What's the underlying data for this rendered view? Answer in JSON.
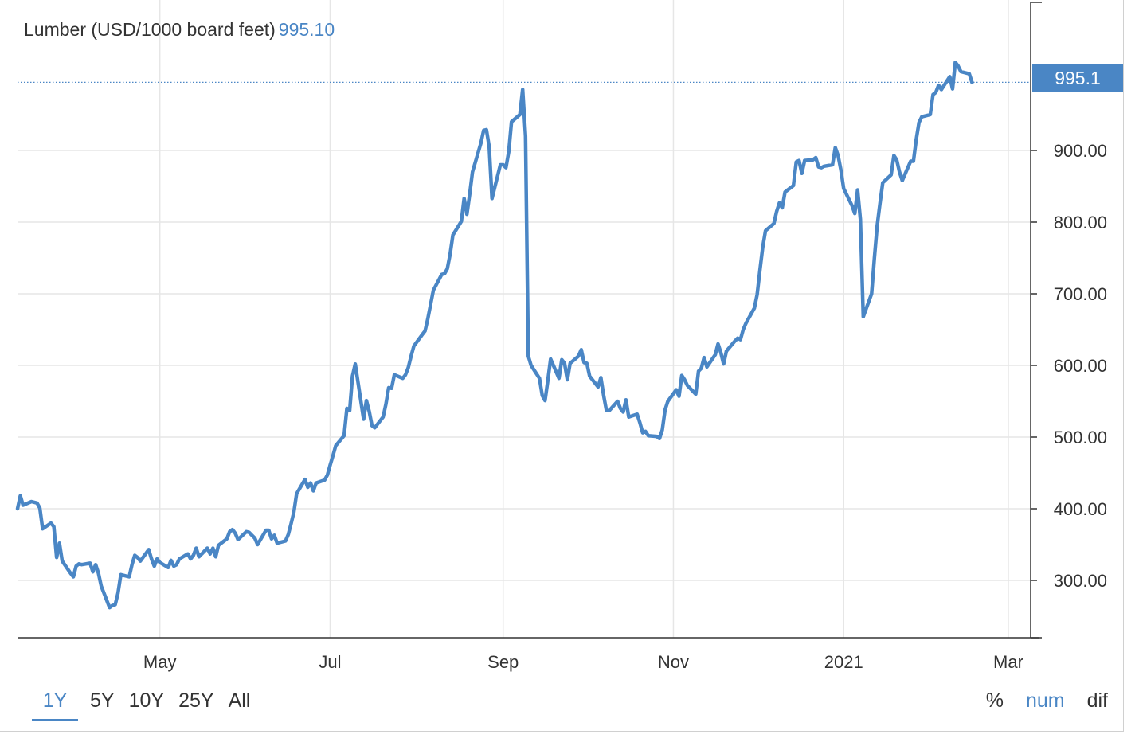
{
  "header": {
    "title": "Lumber (USD/1000 board feet)",
    "last_value": "995.10"
  },
  "price_label": "995.1",
  "range_buttons": [
    {
      "label": "1Y",
      "active": true
    },
    {
      "label": "5Y",
      "active": false
    },
    {
      "label": "10Y",
      "active": false
    },
    {
      "label": "25Y",
      "active": false
    },
    {
      "label": "All",
      "active": false
    }
  ],
  "mode_buttons": [
    {
      "label": "%",
      "active": false
    },
    {
      "label": "num",
      "active": true
    },
    {
      "label": "dif",
      "active": false
    }
  ],
  "colors": {
    "line": "#4a86c5",
    "grid": "#e6e6e6",
    "axis": "#333333",
    "text": "#333333",
    "accent": "#4a86c5",
    "price_tag_bg": "#4a86c5"
  },
  "chart_data": {
    "type": "line",
    "title": "Lumber (USD/1000 board feet)",
    "xlabel": "",
    "ylabel": "",
    "ylim": [
      220,
      1110
    ],
    "xlim": [
      "2020-03-11",
      "2021-03-09"
    ],
    "yticks": [
      300,
      400,
      500,
      600,
      700,
      800,
      900
    ],
    "ytick_labels": [
      "300.00",
      "400.00",
      "500.00",
      "600.00",
      "700.00",
      "800.00",
      "900.00"
    ],
    "xticks": [
      "2020-05-01",
      "2020-07-01",
      "2020-09-01",
      "2020-11-01",
      "2021-01-01",
      "2021-03-01"
    ],
    "xtick_labels": [
      "May",
      "Jul",
      "Sep",
      "Nov",
      "2021",
      "Mar"
    ],
    "grid": true,
    "last_value": 995.1,
    "series": [
      {
        "values": [
          [
            "2020-03-11",
            400
          ],
          [
            "2020-03-12",
            418
          ],
          [
            "2020-03-13",
            405
          ],
          [
            "2020-03-16",
            410
          ],
          [
            "2020-03-18",
            408
          ],
          [
            "2020-03-19",
            401
          ],
          [
            "2020-03-20",
            372
          ],
          [
            "2020-03-23",
            380
          ],
          [
            "2020-03-24",
            375
          ],
          [
            "2020-03-25",
            332
          ],
          [
            "2020-03-26",
            352
          ],
          [
            "2020-03-27",
            327
          ],
          [
            "2020-03-30",
            310
          ],
          [
            "2020-03-31",
            305
          ],
          [
            "2020-04-01",
            320
          ],
          [
            "2020-04-02",
            323
          ],
          [
            "2020-04-03",
            322
          ],
          [
            "2020-04-06",
            324
          ],
          [
            "2020-04-07",
            312
          ],
          [
            "2020-04-08",
            322
          ],
          [
            "2020-04-09",
            310
          ],
          [
            "2020-04-10",
            292
          ],
          [
            "2020-04-13",
            262
          ],
          [
            "2020-04-14",
            265
          ],
          [
            "2020-04-15",
            266
          ],
          [
            "2020-04-16",
            282
          ],
          [
            "2020-04-17",
            308
          ],
          [
            "2020-04-20",
            305
          ],
          [
            "2020-04-21",
            322
          ],
          [
            "2020-04-22",
            335
          ],
          [
            "2020-04-23",
            332
          ],
          [
            "2020-04-24",
            327
          ],
          [
            "2020-04-27",
            343
          ],
          [
            "2020-04-28",
            330
          ],
          [
            "2020-04-29",
            320
          ],
          [
            "2020-04-30",
            330
          ],
          [
            "2020-05-01",
            325
          ],
          [
            "2020-05-04",
            318
          ],
          [
            "2020-05-05",
            328
          ],
          [
            "2020-05-06",
            320
          ],
          [
            "2020-05-07",
            322
          ],
          [
            "2020-05-08",
            330
          ],
          [
            "2020-05-11",
            337
          ],
          [
            "2020-05-12",
            330
          ],
          [
            "2020-05-13",
            335
          ],
          [
            "2020-05-14",
            345
          ],
          [
            "2020-05-15",
            333
          ],
          [
            "2020-05-18",
            345
          ],
          [
            "2020-05-19",
            337
          ],
          [
            "2020-05-20",
            345
          ],
          [
            "2020-05-21",
            333
          ],
          [
            "2020-05-22",
            349
          ],
          [
            "2020-05-25",
            358
          ],
          [
            "2020-05-26",
            368
          ],
          [
            "2020-05-27",
            371
          ],
          [
            "2020-05-28",
            366
          ],
          [
            "2020-05-29",
            357
          ],
          [
            "2020-06-01",
            368
          ],
          [
            "2020-06-02",
            367
          ],
          [
            "2020-06-03",
            363
          ],
          [
            "2020-06-04",
            359
          ],
          [
            "2020-06-05",
            350
          ],
          [
            "2020-06-08",
            370
          ],
          [
            "2020-06-09",
            370
          ],
          [
            "2020-06-10",
            358
          ],
          [
            "2020-06-11",
            363
          ],
          [
            "2020-06-12",
            352
          ],
          [
            "2020-06-15",
            355
          ],
          [
            "2020-06-16",
            364
          ],
          [
            "2020-06-17",
            379
          ],
          [
            "2020-06-18",
            395
          ],
          [
            "2020-06-19",
            421
          ],
          [
            "2020-06-22",
            441
          ],
          [
            "2020-06-23",
            430
          ],
          [
            "2020-06-24",
            436
          ],
          [
            "2020-06-25",
            425
          ],
          [
            "2020-06-26",
            436
          ],
          [
            "2020-06-29",
            440
          ],
          [
            "2020-06-30",
            447
          ],
          [
            "2020-07-01",
            461
          ],
          [
            "2020-07-02",
            474
          ],
          [
            "2020-07-03",
            488
          ],
          [
            "2020-07-06",
            502
          ],
          [
            "2020-07-07",
            540
          ],
          [
            "2020-07-08",
            537
          ],
          [
            "2020-07-09",
            585
          ],
          [
            "2020-07-10",
            602
          ],
          [
            "2020-07-13",
            525
          ],
          [
            "2020-07-14",
            551
          ],
          [
            "2020-07-15",
            536
          ],
          [
            "2020-07-16",
            516
          ],
          [
            "2020-07-17",
            513
          ],
          [
            "2020-07-20",
            528
          ],
          [
            "2020-07-21",
            546
          ],
          [
            "2020-07-22",
            569
          ],
          [
            "2020-07-23",
            568
          ],
          [
            "2020-07-24",
            587
          ],
          [
            "2020-07-27",
            582
          ],
          [
            "2020-07-28",
            587
          ],
          [
            "2020-07-29",
            597
          ],
          [
            "2020-07-30",
            613
          ],
          [
            "2020-07-31",
            627
          ],
          [
            "2020-08-03",
            643
          ],
          [
            "2020-08-04",
            648
          ],
          [
            "2020-08-05",
            665
          ],
          [
            "2020-08-06",
            685
          ],
          [
            "2020-08-07",
            705
          ],
          [
            "2020-08-10",
            727
          ],
          [
            "2020-08-11",
            728
          ],
          [
            "2020-08-12",
            735
          ],
          [
            "2020-08-13",
            755
          ],
          [
            "2020-08-14",
            782
          ],
          [
            "2020-08-17",
            801
          ],
          [
            "2020-08-18",
            833
          ],
          [
            "2020-08-19",
            811
          ],
          [
            "2020-08-20",
            839
          ],
          [
            "2020-08-21",
            870
          ],
          [
            "2020-08-24",
            910
          ],
          [
            "2020-08-25",
            928
          ],
          [
            "2020-08-26",
            929
          ],
          [
            "2020-08-27",
            905
          ],
          [
            "2020-08-28",
            833
          ],
          [
            "2020-08-31",
            880
          ],
          [
            "2020-09-01",
            880
          ],
          [
            "2020-09-02",
            876
          ],
          [
            "2020-09-03",
            898
          ],
          [
            "2020-09-04",
            940
          ],
          [
            "2020-09-07",
            950
          ],
          [
            "2020-09-08",
            985
          ],
          [
            "2020-09-09",
            920
          ],
          [
            "2020-09-10",
            613
          ],
          [
            "2020-09-11",
            600
          ],
          [
            "2020-09-14",
            582
          ],
          [
            "2020-09-15",
            558
          ],
          [
            "2020-09-16",
            551
          ],
          [
            "2020-09-17",
            579
          ],
          [
            "2020-09-18",
            609
          ],
          [
            "2020-09-21",
            582
          ],
          [
            "2020-09-22",
            608
          ],
          [
            "2020-09-23",
            603
          ],
          [
            "2020-09-24",
            580
          ],
          [
            "2020-09-25",
            603
          ],
          [
            "2020-09-28",
            613
          ],
          [
            "2020-09-29",
            622
          ],
          [
            "2020-09-30",
            604
          ],
          [
            "2020-10-01",
            603
          ],
          [
            "2020-10-02",
            585
          ],
          [
            "2020-10-05",
            570
          ],
          [
            "2020-10-06",
            583
          ],
          [
            "2020-10-07",
            558
          ],
          [
            "2020-10-08",
            537
          ],
          [
            "2020-10-09",
            537
          ],
          [
            "2020-10-12",
            550
          ],
          [
            "2020-10-13",
            540
          ],
          [
            "2020-10-14",
            535
          ],
          [
            "2020-10-15",
            552
          ],
          [
            "2020-10-16",
            528
          ],
          [
            "2020-10-19",
            532
          ],
          [
            "2020-10-20",
            520
          ],
          [
            "2020-10-21",
            506
          ],
          [
            "2020-10-22",
            508
          ],
          [
            "2020-10-23",
            502
          ],
          [
            "2020-10-26",
            501
          ],
          [
            "2020-10-27",
            498
          ],
          [
            "2020-10-28",
            510
          ],
          [
            "2020-10-29",
            538
          ],
          [
            "2020-10-30",
            550
          ],
          [
            "2020-11-02",
            566
          ],
          [
            "2020-11-03",
            557
          ],
          [
            "2020-11-04",
            586
          ],
          [
            "2020-11-05",
            580
          ],
          [
            "2020-11-06",
            572
          ],
          [
            "2020-11-09",
            560
          ],
          [
            "2020-11-10",
            592
          ],
          [
            "2020-11-11",
            596
          ],
          [
            "2020-11-12",
            611
          ],
          [
            "2020-11-13",
            598
          ],
          [
            "2020-11-16",
            615
          ],
          [
            "2020-11-17",
            630
          ],
          [
            "2020-11-18",
            618
          ],
          [
            "2020-11-19",
            602
          ],
          [
            "2020-11-20",
            620
          ],
          [
            "2020-11-23",
            634
          ],
          [
            "2020-11-24",
            638
          ],
          [
            "2020-11-25",
            636
          ],
          [
            "2020-11-26",
            650
          ],
          [
            "2020-11-27",
            659
          ],
          [
            "2020-11-30",
            680
          ],
          [
            "2020-12-01",
            699
          ],
          [
            "2020-12-02",
            733
          ],
          [
            "2020-12-03",
            765
          ],
          [
            "2020-12-04",
            788
          ],
          [
            "2020-12-07",
            798
          ],
          [
            "2020-12-08",
            815
          ],
          [
            "2020-12-09",
            827
          ],
          [
            "2020-12-10",
            820
          ],
          [
            "2020-12-11",
            842
          ],
          [
            "2020-12-14",
            851
          ],
          [
            "2020-12-15",
            884
          ],
          [
            "2020-12-16",
            886
          ],
          [
            "2020-12-17",
            868
          ],
          [
            "2020-12-18",
            886
          ],
          [
            "2020-12-21",
            887
          ],
          [
            "2020-12-22",
            890
          ],
          [
            "2020-12-23",
            877
          ],
          [
            "2020-12-24",
            876
          ],
          [
            "2020-12-25",
            878
          ],
          [
            "2020-12-28",
            880
          ],
          [
            "2020-12-29",
            904
          ],
          [
            "2020-12-30",
            893
          ],
          [
            "2020-12-31",
            873
          ],
          [
            "2021-01-01",
            847
          ],
          [
            "2021-01-04",
            823
          ],
          [
            "2021-01-05",
            812
          ],
          [
            "2021-01-06",
            845
          ],
          [
            "2021-01-07",
            804
          ],
          [
            "2021-01-08",
            668
          ],
          [
            "2021-01-11",
            700
          ],
          [
            "2021-01-12",
            750
          ],
          [
            "2021-01-13",
            795
          ],
          [
            "2021-01-14",
            826
          ],
          [
            "2021-01-15",
            855
          ],
          [
            "2021-01-18",
            866
          ],
          [
            "2021-01-19",
            893
          ],
          [
            "2021-01-20",
            887
          ],
          [
            "2021-01-21",
            870
          ],
          [
            "2021-01-22",
            858
          ],
          [
            "2021-01-25",
            885
          ],
          [
            "2021-01-26",
            885
          ],
          [
            "2021-01-27",
            915
          ],
          [
            "2021-01-28",
            939
          ],
          [
            "2021-01-29",
            947
          ],
          [
            "2021-02-01",
            950
          ],
          [
            "2021-02-02",
            978
          ],
          [
            "2021-02-03",
            981
          ],
          [
            "2021-02-04",
            991
          ],
          [
            "2021-02-05",
            985
          ],
          [
            "2021-02-08",
            1003
          ],
          [
            "2021-02-09",
            986
          ],
          [
            "2021-02-10",
            1023
          ],
          [
            "2021-02-11",
            1018
          ],
          [
            "2021-02-12",
            1010
          ],
          [
            "2021-02-15",
            1007
          ],
          [
            "2021-02-16",
            995
          ]
        ]
      }
    ]
  }
}
